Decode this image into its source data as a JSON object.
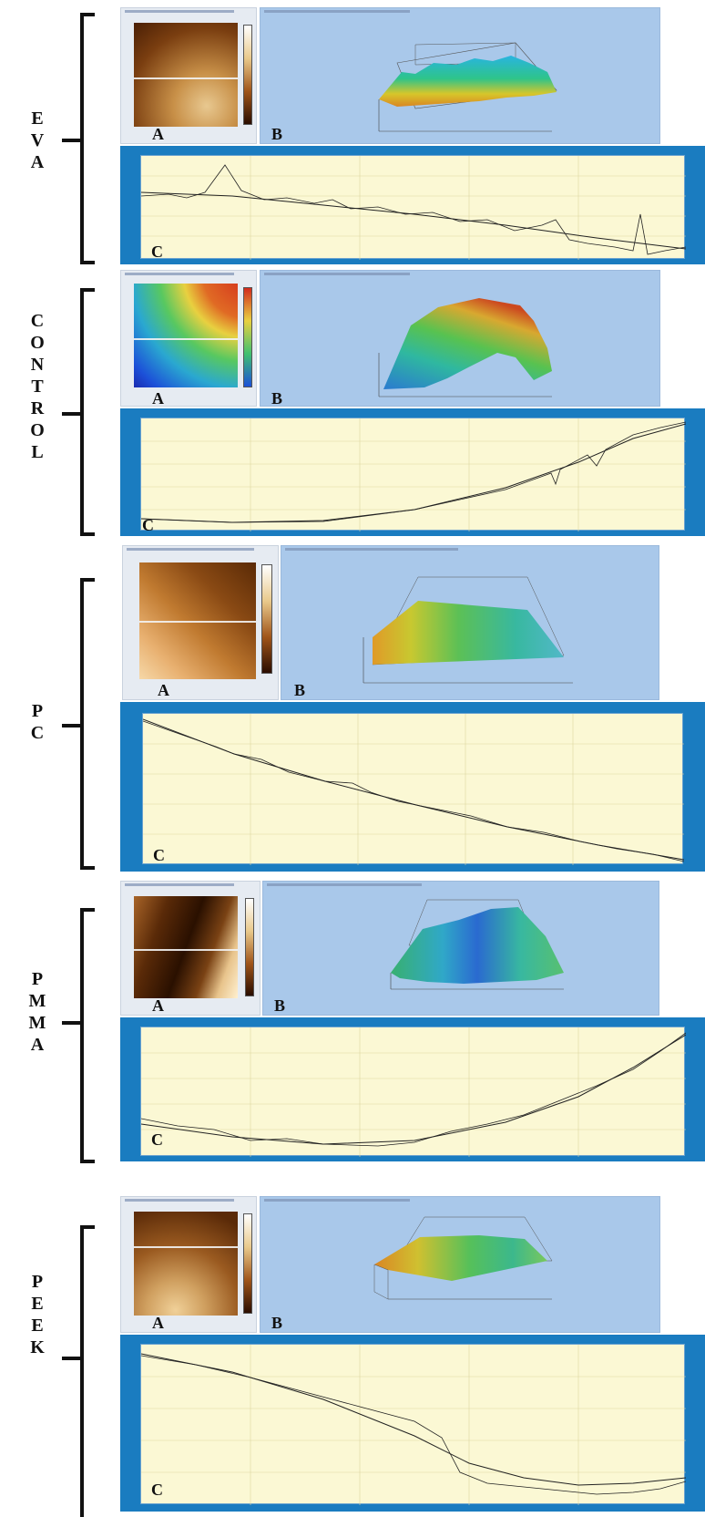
{
  "figure": {
    "panel_letters": {
      "a": "A",
      "b": "B",
      "c": "C"
    },
    "samples": [
      {
        "id": "eva",
        "label_letters": [
          "E",
          "V",
          "A"
        ],
        "palette": "afm-brown",
        "surface": "eva"
      },
      {
        "id": "control",
        "label_letters": [
          "C",
          "O",
          "N",
          "T",
          "R",
          "O",
          "L"
        ],
        "palette": "rainbow",
        "surface": "control"
      },
      {
        "id": "pc",
        "label_letters": [
          "P",
          "C"
        ],
        "palette": "afm-brown",
        "surface": "pc"
      },
      {
        "id": "pmma",
        "label_letters": [
          "P",
          "M",
          "M",
          "A"
        ],
        "palette": "afm-brown",
        "surface": "pmma"
      },
      {
        "id": "peek",
        "label_letters": [
          "P",
          "E",
          "E",
          "K"
        ],
        "palette": "afm-brown",
        "surface": "peek"
      }
    ]
  },
  "colors": {
    "plot_background": "#fbf8d4",
    "frame_blue": "#1a7cc0",
    "panel_b_blue": "#a9c8ea",
    "profile_line": "#222222"
  }
}
